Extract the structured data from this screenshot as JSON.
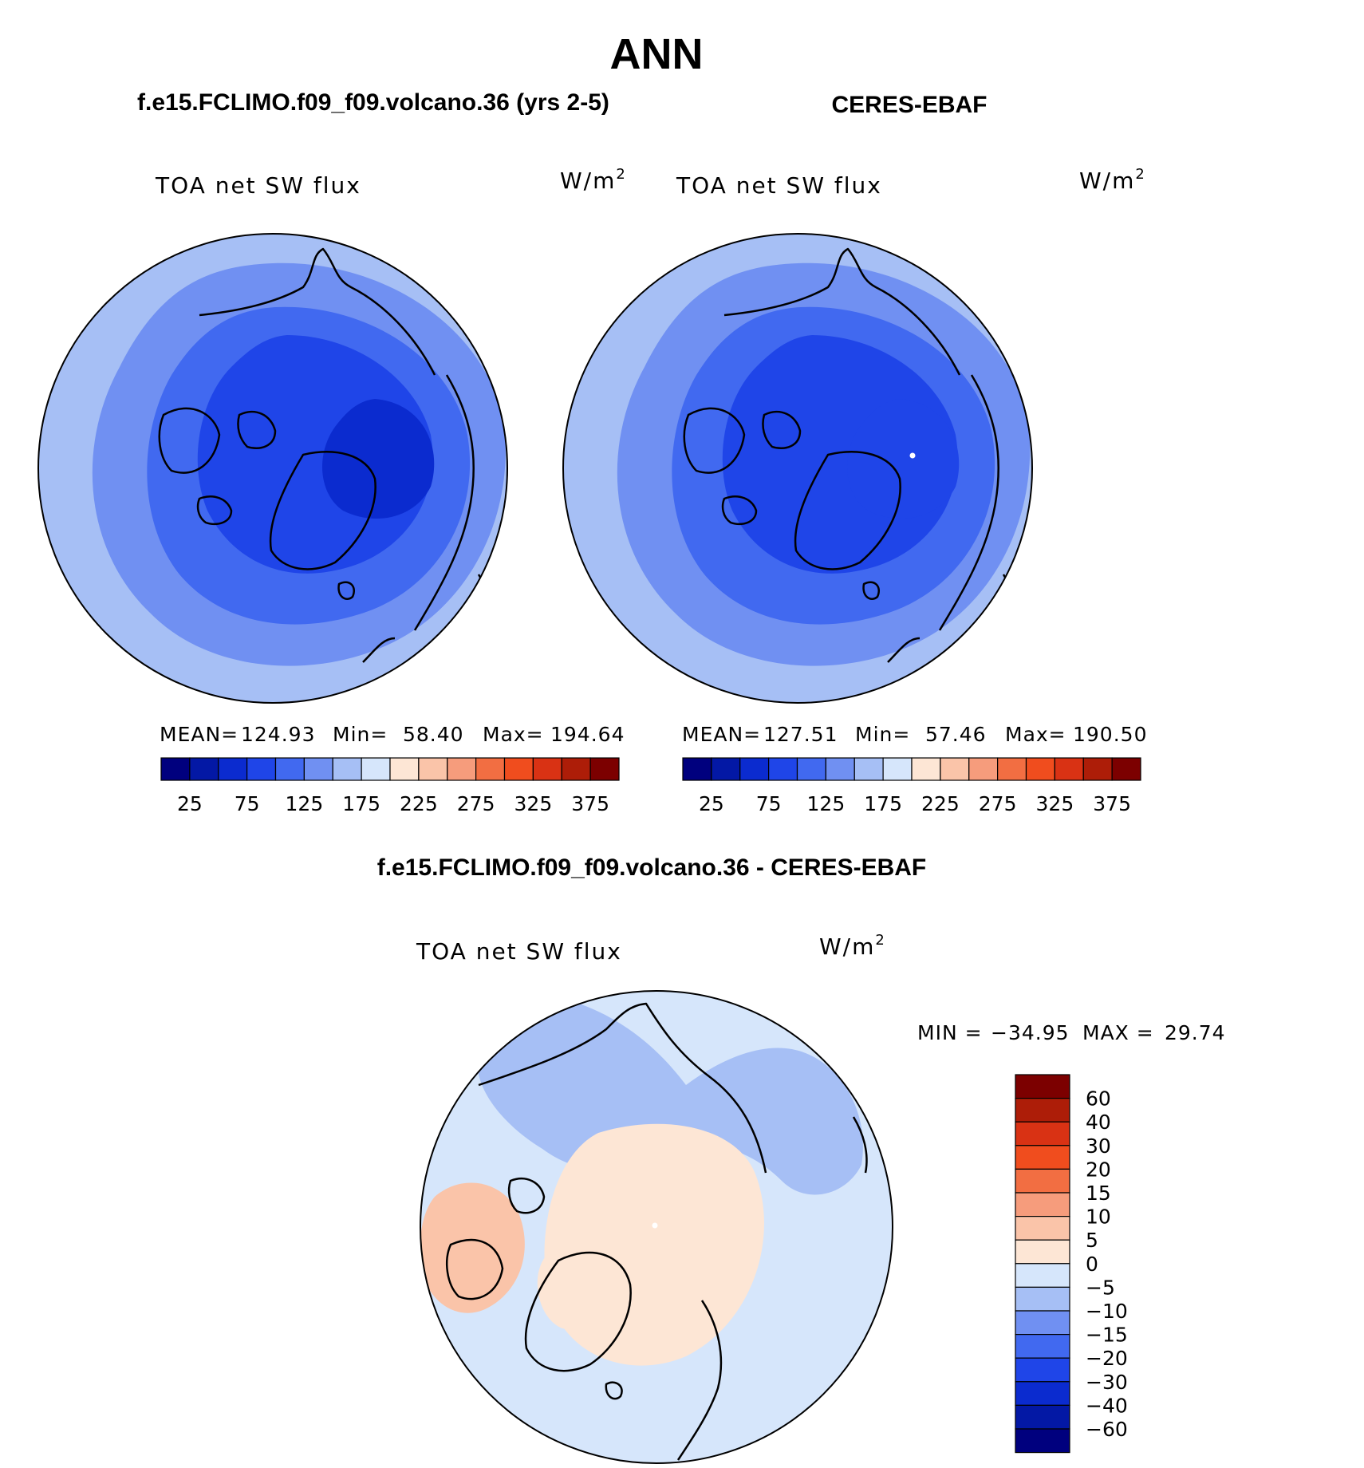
{
  "figure_title": "ANN",
  "colors": {
    "abs_scale": [
      "#00007e",
      "#0318a5",
      "#0b2bcf",
      "#1f45e8",
      "#4169f0",
      "#7090f2",
      "#a6bff5",
      "#d6e6fb",
      "#fde6d5",
      "#fac4a9",
      "#f69c7c",
      "#f26e42",
      "#f04d1e",
      "#d93214",
      "#ad1d08",
      "#7c0000"
    ],
    "diff_scale": [
      "#00007e",
      "#0318a5",
      "#0b2bcf",
      "#1f45e8",
      "#4169f0",
      "#7090f2",
      "#a6bff5",
      "#d6e6fb",
      "#fde6d5",
      "#fac4a9",
      "#f69c7c",
      "#f26e42",
      "#f04d1e",
      "#d93214",
      "#ad1d08",
      "#7c0000"
    ]
  },
  "chart_data": [
    {
      "type": "heatmap",
      "projection": "north-polar-stereographic",
      "panel_title": "f.e15.FCLIMO.f09_f09.volcano.36 (yrs 2-5)",
      "variable": "TOA net SW flux",
      "units": "W/m",
      "units_exponent": "2",
      "stats": {
        "mean_label": "MEAN=",
        "mean": "124.93",
        "min_label": "Min=",
        "min": "58.40",
        "max_label": "Max=",
        "max": "194.64"
      },
      "colorbar": {
        "orientation": "horizontal",
        "levels": [
          25,
          50,
          75,
          100,
          125,
          150,
          175,
          200,
          225,
          250,
          275,
          300,
          325,
          350,
          375
        ],
        "tick_labels": [
          "25",
          "75",
          "125",
          "175",
          "225",
          "275",
          "325",
          "375"
        ]
      },
      "fields": {
        "pole": 70,
        "inner": 90,
        "mid": 110,
        "outer": 135,
        "rim": 160
      }
    },
    {
      "type": "heatmap",
      "projection": "north-polar-stereographic",
      "panel_title": "CERES-EBAF",
      "variable": "TOA net SW flux",
      "units": "W/m",
      "units_exponent": "2",
      "stats": {
        "mean_label": "MEAN=",
        "mean": "127.51",
        "min_label": "Min=",
        "min": "57.46",
        "max_label": "Max=",
        "max": "190.50"
      },
      "colorbar": {
        "orientation": "horizontal",
        "levels": [
          25,
          50,
          75,
          100,
          125,
          150,
          175,
          200,
          225,
          250,
          275,
          300,
          325,
          350,
          375
        ],
        "tick_labels": [
          "25",
          "75",
          "125",
          "175",
          "225",
          "275",
          "325",
          "375"
        ]
      },
      "fields": {
        "pole": 78,
        "inner": 92,
        "mid": 112,
        "outer": 138,
        "rim": 165
      }
    },
    {
      "type": "heatmap",
      "projection": "north-polar-stereographic",
      "panel_title": "f.e15.FCLIMO.f09_f09.volcano.36 - CERES-EBAF",
      "variable": "TOA net SW flux",
      "units": "W/m",
      "units_exponent": "2",
      "stats": {
        "min_label": "MIN =",
        "min": "−34.95",
        "max_label": "MAX =",
        "max": "29.74"
      },
      "colorbar": {
        "orientation": "vertical",
        "levels": [
          -60,
          -40,
          -30,
          -20,
          -15,
          -10,
          -5,
          0,
          5,
          10,
          15,
          20,
          30,
          40,
          60
        ],
        "tick_labels": [
          "60",
          "40",
          "30",
          "20",
          "15",
          "10",
          "5",
          "0",
          "−5",
          "−10",
          "−15",
          "−20",
          "−30",
          "−40",
          "−60"
        ]
      },
      "fields": {
        "pole": 3,
        "inner": 2,
        "mid": 8,
        "outer": -7,
        "rim": -4
      }
    }
  ]
}
